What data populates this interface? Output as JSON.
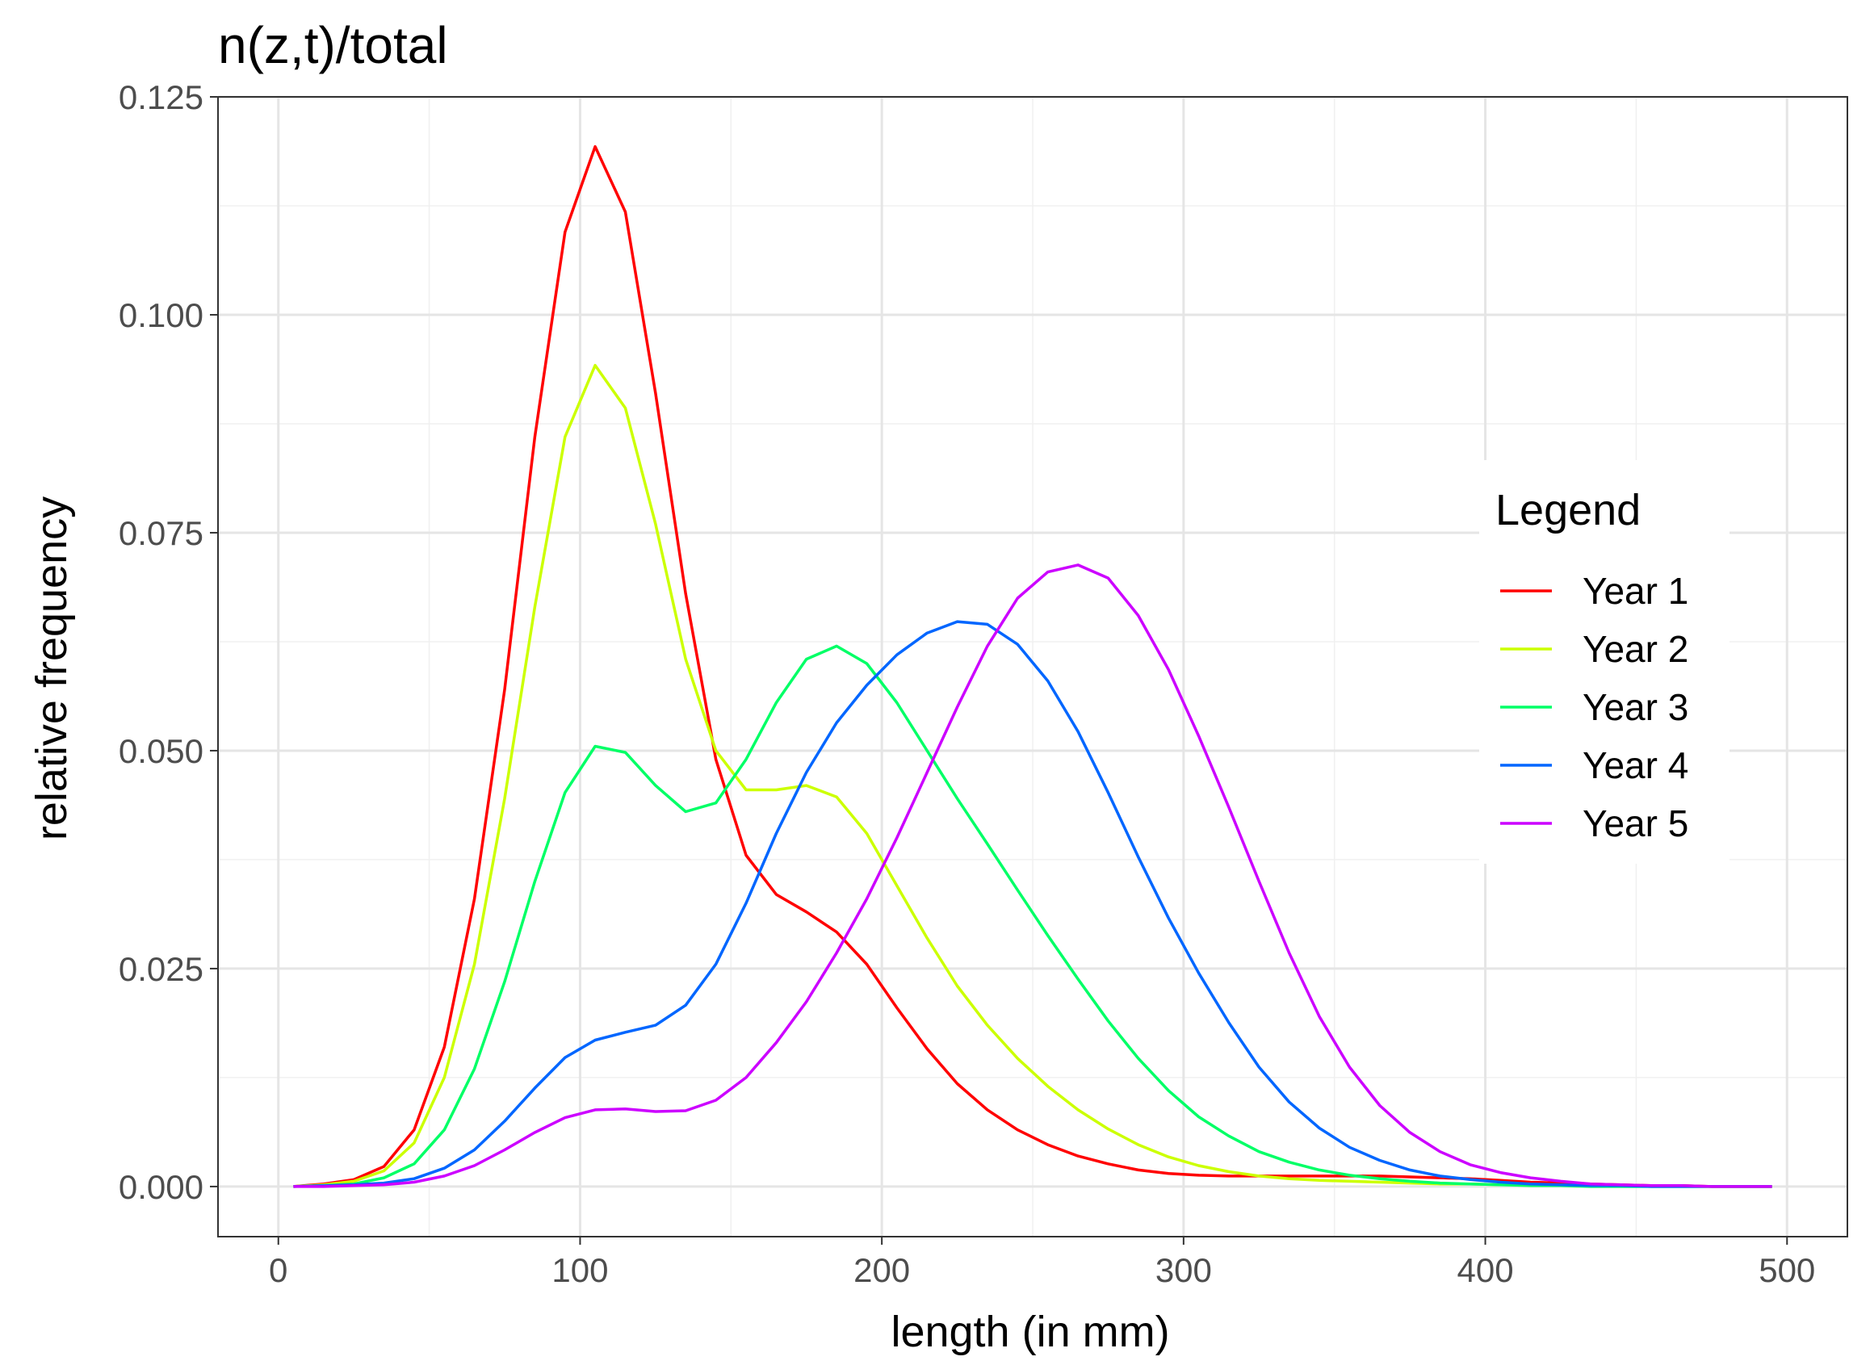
{
  "chart_data": {
    "type": "line",
    "title": "n(z,t)/total",
    "xlabel": "length (in mm)",
    "ylabel": "relative frequency",
    "xlim": [
      -20,
      520
    ],
    "ylim": [
      -0.00575,
      0.125
    ],
    "x_ticks": [
      0,
      100,
      200,
      300,
      400,
      500
    ],
    "x_tick_labels": [
      "0",
      "100",
      "200",
      "300",
      "400",
      "500"
    ],
    "y_ticks": [
      0,
      0.025,
      0.05,
      0.075,
      0.1,
      0.125
    ],
    "y_tick_labels": [
      "0.000",
      "0.025",
      "0.050",
      "0.075",
      "0.100",
      "0.125"
    ],
    "grid": true,
    "legend": {
      "title": "Legend",
      "position": "right"
    },
    "x": [
      5,
      15,
      25,
      35,
      45,
      55,
      65,
      75,
      85,
      95,
      105,
      115,
      125,
      135,
      145,
      155,
      165,
      175,
      185,
      195,
      205,
      215,
      225,
      235,
      245,
      255,
      265,
      275,
      285,
      295,
      305,
      315,
      325,
      335,
      345,
      355,
      365,
      375,
      385,
      395,
      405,
      415,
      425,
      435,
      445,
      455,
      465,
      475,
      485,
      495
    ],
    "series": [
      {
        "name": "Year 1",
        "color": "#ff0000",
        "values": [
          0.0,
          0.0003,
          0.0008,
          0.0023,
          0.0065,
          0.016,
          0.033,
          0.057,
          0.086,
          0.1095,
          0.1193,
          0.1118,
          0.091,
          0.068,
          0.049,
          0.038,
          0.0335,
          0.0315,
          0.0292,
          0.0255,
          0.0205,
          0.0158,
          0.0118,
          0.0088,
          0.0065,
          0.0048,
          0.0035,
          0.0026,
          0.0019,
          0.0015,
          0.0013,
          0.0012,
          0.0012,
          0.0012,
          0.0012,
          0.0012,
          0.0012,
          0.0011,
          0.001,
          0.0009,
          0.0007,
          0.0005,
          0.0004,
          0.0003,
          0.0002,
          0.0001,
          0.0001,
          0.0,
          0.0,
          0.0
        ]
      },
      {
        "name": "Year 2",
        "color": "#ccff00",
        "values": [
          0.0,
          0.0002,
          0.0006,
          0.0018,
          0.005,
          0.0125,
          0.0255,
          0.0445,
          0.0665,
          0.086,
          0.0942,
          0.0893,
          0.076,
          0.0605,
          0.05,
          0.0455,
          0.0455,
          0.046,
          0.0447,
          0.0405,
          0.0345,
          0.0285,
          0.023,
          0.0185,
          0.0147,
          0.0115,
          0.0088,
          0.0066,
          0.0048,
          0.0034,
          0.0024,
          0.0017,
          0.0012,
          0.0009,
          0.0007,
          0.0006,
          0.0005,
          0.0004,
          0.0003,
          0.0003,
          0.0002,
          0.0002,
          0.0001,
          0.0001,
          0.0001,
          0.0,
          0.0,
          0.0,
          0.0,
          0.0
        ]
      },
      {
        "name": "Year 3",
        "color": "#00ff66",
        "values": [
          0.0,
          0.0001,
          0.0003,
          0.001,
          0.0026,
          0.0065,
          0.0135,
          0.0235,
          0.035,
          0.0452,
          0.0505,
          0.0498,
          0.046,
          0.043,
          0.044,
          0.049,
          0.0555,
          0.0605,
          0.062,
          0.06,
          0.0555,
          0.05,
          0.0445,
          0.0393,
          0.034,
          0.0288,
          0.0238,
          0.019,
          0.0147,
          0.011,
          0.008,
          0.0058,
          0.004,
          0.0028,
          0.0019,
          0.0013,
          0.0009,
          0.0006,
          0.0004,
          0.0003,
          0.0002,
          0.0001,
          0.0001,
          0.0,
          0.0,
          0.0,
          0.0,
          0.0,
          0.0,
          0.0
        ]
      },
      {
        "name": "Year 4",
        "color": "#0066ff",
        "values": [
          0.0,
          0.0001,
          0.0002,
          0.0004,
          0.0009,
          0.0021,
          0.0042,
          0.0075,
          0.0113,
          0.0148,
          0.0168,
          0.0177,
          0.0185,
          0.0208,
          0.0255,
          0.0325,
          0.0405,
          0.0475,
          0.0532,
          0.0575,
          0.061,
          0.0635,
          0.0648,
          0.0645,
          0.0622,
          0.058,
          0.0522,
          0.0452,
          0.0378,
          0.0308,
          0.0245,
          0.0188,
          0.0137,
          0.0097,
          0.0067,
          0.0045,
          0.003,
          0.0019,
          0.0012,
          0.0008,
          0.0005,
          0.0003,
          0.0002,
          0.0001,
          0.0001,
          0.0,
          0.0,
          0.0,
          0.0,
          0.0
        ]
      },
      {
        "name": "Year 5",
        "color": "#cc00ff",
        "values": [
          0.0,
          0.0,
          0.0001,
          0.0002,
          0.0005,
          0.0012,
          0.0024,
          0.0042,
          0.0062,
          0.0079,
          0.0088,
          0.0089,
          0.0086,
          0.0087,
          0.0099,
          0.0125,
          0.0165,
          0.0212,
          0.0268,
          0.033,
          0.04,
          0.0475,
          0.055,
          0.062,
          0.0675,
          0.0705,
          0.0713,
          0.0698,
          0.0655,
          0.0593,
          0.0517,
          0.0435,
          0.035,
          0.0268,
          0.0195,
          0.0137,
          0.0093,
          0.0062,
          0.004,
          0.0025,
          0.0016,
          0.001,
          0.0006,
          0.0003,
          0.0002,
          0.0001,
          0.0001,
          0.0,
          0.0,
          0.0
        ]
      }
    ]
  }
}
